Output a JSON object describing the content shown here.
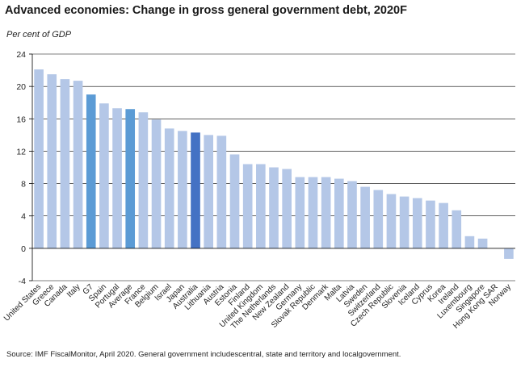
{
  "title": "Advanced economies: Change in gross general government debt, 2020F",
  "subtitle": "Per cent of GDP",
  "source": "Source: IMF FiscalMonitor, April 2020.  General government includescentral, state and territory and localgovernment.",
  "colors": {
    "default_bar": "#b4c7e7",
    "highlight_bar": "#5b9bd5",
    "australia_bar": "#4472c4",
    "gridline": "#000000",
    "axis": "#000000"
  },
  "chart_data": {
    "type": "bar",
    "title": "Advanced economies: Change in gross general government debt, 2020F",
    "ylabel": "Per cent of GDP",
    "xlabel": "",
    "ylim": [
      -4,
      24
    ],
    "yticks": [
      -4,
      0,
      4,
      8,
      12,
      16,
      20,
      24
    ],
    "grid": true,
    "categories": [
      "United States",
      "Greece",
      "Canada",
      "Italy",
      "G7",
      "Spain",
      "Portugal",
      "Average",
      "France",
      "Belgium",
      "Israel",
      "Japan",
      "Australia",
      "Lithuania",
      "Austria",
      "Estonia",
      "Finland",
      "United Kingdom",
      "The Netherlands",
      "New Zealand",
      "Germany",
      "Slovak Republic",
      "Denmark",
      "Malta",
      "Latvia",
      "Sweden",
      "Switzerland",
      "Czech Republic",
      "Slovenia",
      "Iceland",
      "Cyprus",
      "Korea",
      "Ireland",
      "Luxembourg",
      "Singapore",
      "Hong Kong SAR",
      "Norway"
    ],
    "values": [
      22.1,
      21.5,
      20.9,
      20.7,
      19.0,
      17.9,
      17.3,
      17.2,
      16.8,
      15.9,
      14.8,
      14.5,
      14.3,
      14.0,
      13.9,
      11.6,
      10.4,
      10.4,
      10.0,
      9.8,
      8.8,
      8.8,
      8.8,
      8.6,
      8.3,
      7.6,
      7.2,
      6.7,
      6.4,
      6.2,
      5.9,
      5.6,
      4.7,
      1.5,
      1.2,
      0.0,
      -1.3
    ],
    "highlight": {
      "G7": "highlight_bar",
      "Average": "highlight_bar",
      "Australia": "australia_bar"
    }
  }
}
